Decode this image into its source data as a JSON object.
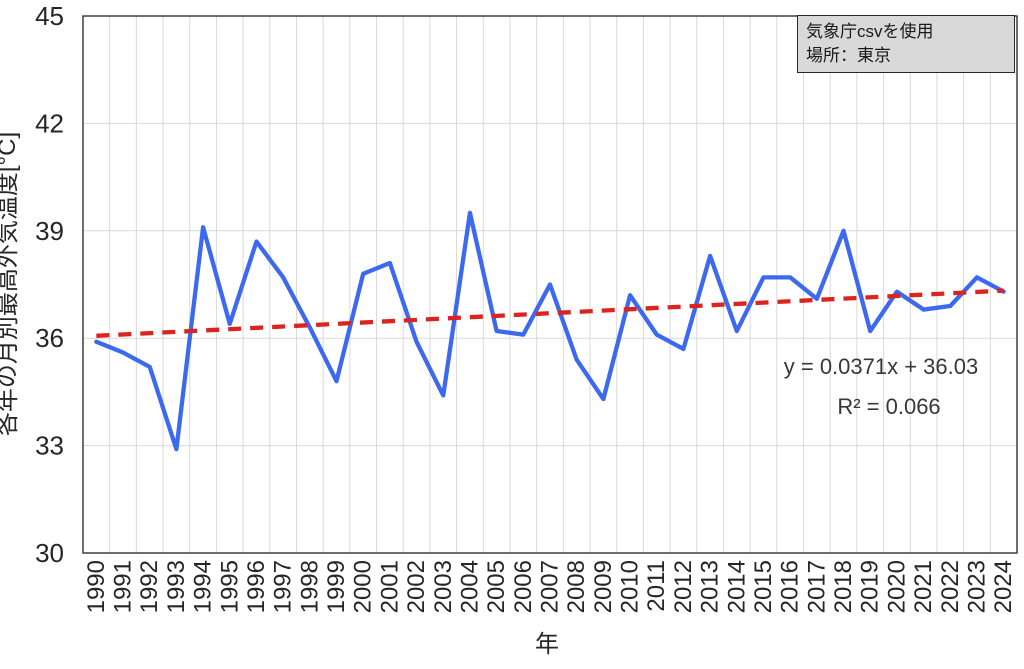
{
  "page": {
    "background": "#ffffff"
  },
  "legend": {
    "line1": "気象庁csvを使用",
    "line2": "場所：東京"
  },
  "chart_data": {
    "type": "line",
    "title": "",
    "xlabel": "年",
    "ylabel": "各年の月別最高外気温度[°C]",
    "categories": [
      "1990",
      "1991",
      "1992",
      "1993",
      "1994",
      "1995",
      "1996",
      "1997",
      "1998",
      "1999",
      "2000",
      "2001",
      "2002",
      "2003",
      "2004",
      "2005",
      "2006",
      "2007",
      "2008",
      "2009",
      "2010",
      "2011",
      "2012",
      "2013",
      "2014",
      "2015",
      "2016",
      "2017",
      "2018",
      "2019",
      "2020",
      "2021",
      "2022",
      "2023",
      "2024"
    ],
    "series": [
      {
        "name": "各年の月別最高外気温度",
        "color": "#3C69F0",
        "values": [
          35.9,
          35.6,
          35.2,
          32.9,
          39.1,
          36.4,
          38.7,
          37.7,
          36.3,
          34.8,
          37.8,
          38.1,
          35.9,
          34.4,
          39.5,
          36.2,
          36.1,
          37.5,
          35.4,
          34.3,
          37.2,
          36.1,
          35.7,
          38.3,
          36.2,
          37.7,
          37.7,
          37.1,
          39.0,
          36.2,
          37.3,
          36.8,
          36.9,
          37.7,
          37.3
        ]
      }
    ],
    "trendline": {
      "type": "linear",
      "slope": 0.0371,
      "intercept": 36.03,
      "r2": 0.066,
      "equation_label": "y = 0.0371x + 36.03",
      "r2_label": "R² = 0.066",
      "color": "#DB2320",
      "style": "dashed"
    },
    "ylim": [
      30,
      45
    ],
    "yticks": [
      30,
      33,
      36,
      39,
      42,
      45
    ],
    "grid": true,
    "grid_color": "#D9D9D9",
    "border_color": "#3F3F3F",
    "legend_position": "top-right"
  }
}
